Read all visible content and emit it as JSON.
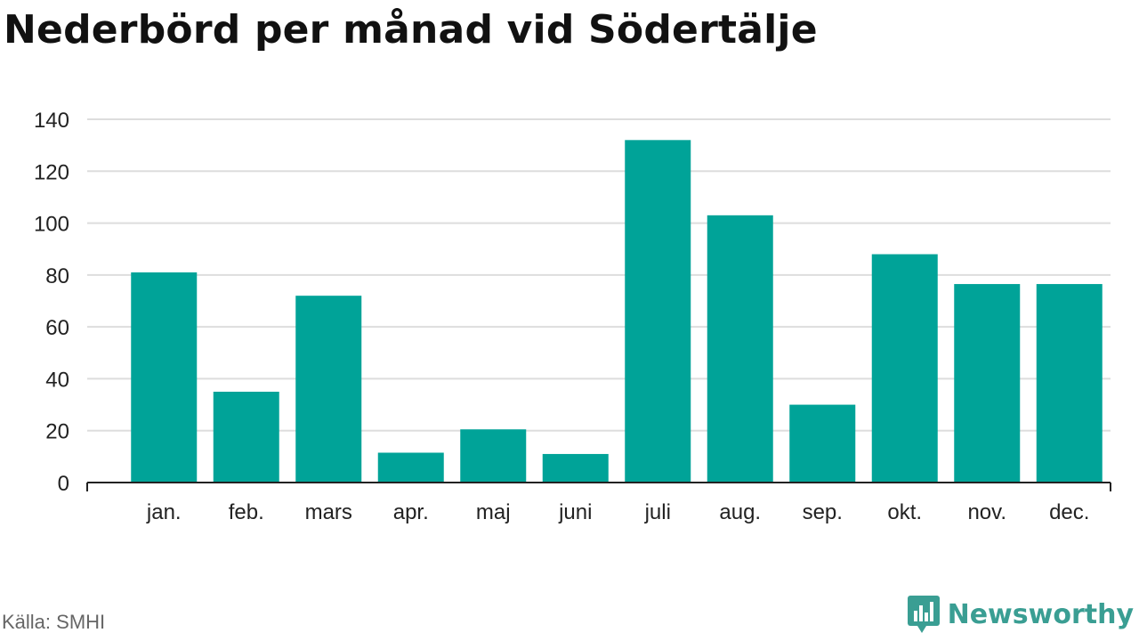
{
  "chart_data": {
    "type": "bar",
    "title": "Nederbörd per månad vid Södertälje",
    "categories": [
      "jan.",
      "feb.",
      "mars",
      "apr.",
      "maj",
      "juni",
      "juli",
      "aug.",
      "sep.",
      "okt.",
      "nov.",
      "dec."
    ],
    "values": [
      81,
      35,
      72,
      11.5,
      20.5,
      11,
      132,
      103,
      30,
      88,
      76.5,
      76.5
    ],
    "yticks": [
      "0",
      "20",
      "40",
      "60",
      "80",
      "100",
      "120",
      "140"
    ],
    "ylim": [
      0,
      140
    ],
    "grid": true,
    "bar_color": "#00a398"
  },
  "footer": {
    "source": "Källa: SMHI",
    "brand": "Newsworthy"
  },
  "colors": {
    "brand": "#3a9e93",
    "grid": "#dddddd",
    "axis": "#222222"
  }
}
